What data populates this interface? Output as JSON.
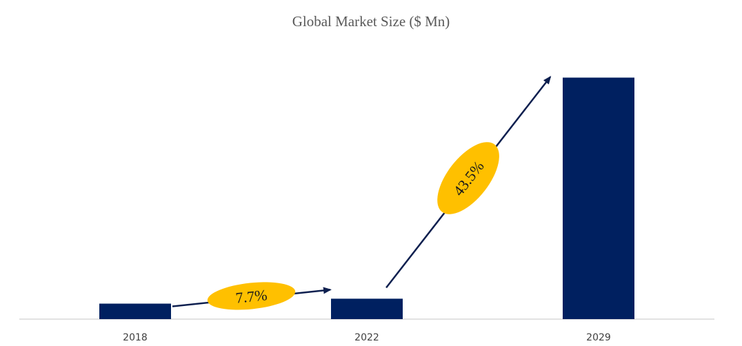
{
  "chart_data": {
    "type": "bar",
    "title": "Global Market Size ($ Mn)",
    "xlabel": "",
    "ylabel": "",
    "categories": [
      "2018",
      "2022",
      "2029"
    ],
    "values": [
      22,
      29,
      343
    ],
    "ylim": [
      0,
      370
    ],
    "grid": false,
    "legend": "none",
    "bar_color": "#002060",
    "annotations": [
      {
        "label": "7.7%",
        "from": "2018",
        "to": "2022"
      },
      {
        "label": "43.5%",
        "from": "2022",
        "to": "2029"
      }
    ],
    "annotation_fill": "#FFC000",
    "arrow_color": "#0d1f4f",
    "axis_color": "#d9d9d9"
  }
}
